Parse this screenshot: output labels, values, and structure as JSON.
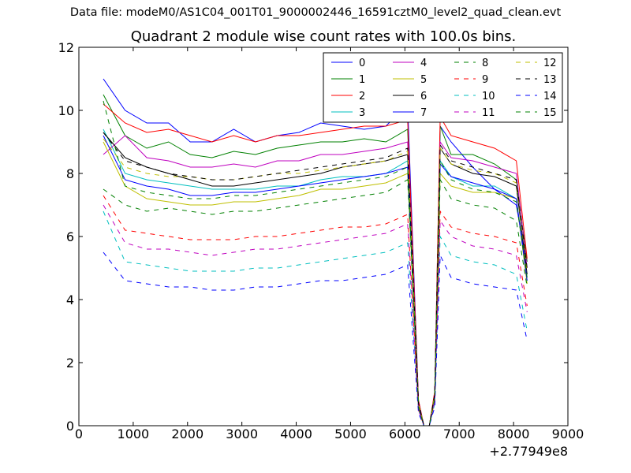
{
  "suptitle": "Data file: modeM0/AS1C04_001T01_9000002446_16591cztM0_level2_quad_clean.evt",
  "chart_data": {
    "type": "line",
    "title": "Quadrant 2 module wise count rates with 100.0s bins.",
    "xlabel": "",
    "ylabel": "",
    "x_offset_label": "+2.77949e8",
    "xlim": [
      0,
      9000
    ],
    "ylim": [
      0,
      12
    ],
    "xticks": [
      0,
      1000,
      2000,
      3000,
      4000,
      5000,
      6000,
      7000,
      8000,
      9000
    ],
    "yticks": [
      0,
      2,
      4,
      6,
      8,
      10,
      12
    ],
    "grid": false,
    "legend_position": "top-right",
    "legend_columns": 4,
    "x": [
      450,
      850,
      1250,
      1650,
      2050,
      2450,
      2850,
      3250,
      3650,
      4050,
      4450,
      4850,
      5250,
      5650,
      6050,
      6250,
      6350,
      6450,
      6550,
      6650,
      6850,
      7250,
      7650,
      8050,
      8250
    ],
    "series": [
      {
        "name": "0",
        "color": "#0000ff",
        "dash": "solid",
        "values": [
          11.0,
          10.0,
          9.6,
          9.6,
          9.0,
          9.0,
          9.4,
          9.0,
          9.2,
          9.3,
          9.6,
          9.5,
          9.4,
          9.5,
          10.2,
          0.8,
          0.0,
          0.0,
          1.0,
          9.5,
          9.0,
          8.2,
          7.5,
          7.0,
          5.0
        ]
      },
      {
        "name": "1",
        "color": "#008000",
        "dash": "solid",
        "values": [
          10.5,
          9.2,
          8.8,
          9.0,
          8.6,
          8.5,
          8.7,
          8.6,
          8.8,
          8.9,
          9.0,
          9.0,
          9.1,
          9.0,
          9.4,
          0.7,
          0.0,
          0.0,
          1.0,
          9.5,
          8.6,
          8.6,
          8.3,
          7.8,
          5.2
        ]
      },
      {
        "name": "2",
        "color": "#ff0000",
        "dash": "solid",
        "values": [
          10.2,
          9.6,
          9.3,
          9.4,
          9.2,
          9.0,
          9.2,
          9.0,
          9.2,
          9.2,
          9.3,
          9.4,
          9.5,
          9.5,
          9.7,
          0.8,
          0.0,
          0.0,
          1.1,
          9.8,
          9.2,
          9.0,
          8.8,
          8.4,
          5.3
        ]
      },
      {
        "name": "3",
        "color": "#00bfbf",
        "dash": "solid",
        "values": [
          9.4,
          8.0,
          7.8,
          7.7,
          7.6,
          7.5,
          7.5,
          7.5,
          7.6,
          7.6,
          7.8,
          7.9,
          7.9,
          8.0,
          8.4,
          0.6,
          0.0,
          0.0,
          0.9,
          8.4,
          7.9,
          7.6,
          7.6,
          7.2,
          4.6
        ]
      },
      {
        "name": "4",
        "color": "#bf00bf",
        "dash": "solid",
        "values": [
          8.6,
          9.2,
          8.5,
          8.4,
          8.2,
          8.2,
          8.3,
          8.2,
          8.4,
          8.4,
          8.6,
          8.6,
          8.7,
          8.8,
          9.0,
          0.7,
          0.0,
          0.0,
          1.0,
          9.0,
          8.5,
          8.4,
          8.2,
          8.0,
          5.0
        ]
      },
      {
        "name": "5",
        "color": "#bfbf00",
        "dash": "solid",
        "values": [
          9.0,
          7.6,
          7.2,
          7.1,
          7.0,
          7.0,
          7.1,
          7.1,
          7.2,
          7.3,
          7.5,
          7.5,
          7.6,
          7.7,
          8.0,
          0.6,
          0.0,
          0.0,
          0.9,
          8.0,
          7.6,
          7.4,
          7.4,
          7.2,
          4.5
        ]
      },
      {
        "name": "6",
        "color": "#000000",
        "dash": "solid",
        "values": [
          9.3,
          8.5,
          8.2,
          8.0,
          7.8,
          7.6,
          7.6,
          7.7,
          7.8,
          7.9,
          8.0,
          8.2,
          8.3,
          8.4,
          8.6,
          0.7,
          0.0,
          0.0,
          1.0,
          8.8,
          8.3,
          8.0,
          7.9,
          7.6,
          4.8
        ]
      },
      {
        "name": "7",
        "color": "#0000ff",
        "dash": "solid",
        "values": [
          9.2,
          7.8,
          7.6,
          7.5,
          7.3,
          7.3,
          7.4,
          7.4,
          7.5,
          7.6,
          7.7,
          7.8,
          7.9,
          8.0,
          8.2,
          0.6,
          0.0,
          0.0,
          0.9,
          8.3,
          7.9,
          7.7,
          7.5,
          7.2,
          4.6
        ]
      },
      {
        "name": "8",
        "color": "#008000",
        "dash": "dashed",
        "values": [
          7.5,
          7.0,
          6.8,
          6.9,
          6.8,
          6.7,
          6.8,
          6.8,
          6.9,
          7.0,
          7.1,
          7.2,
          7.3,
          7.4,
          7.8,
          0.6,
          0.0,
          0.0,
          0.9,
          7.8,
          7.2,
          7.0,
          6.9,
          6.5,
          4.4
        ]
      },
      {
        "name": "9",
        "color": "#ff0000",
        "dash": "dashed",
        "values": [
          7.3,
          6.2,
          6.1,
          6.0,
          5.9,
          5.9,
          5.9,
          6.0,
          6.0,
          6.1,
          6.2,
          6.3,
          6.3,
          6.4,
          6.7,
          0.5,
          0.0,
          0.0,
          0.8,
          6.8,
          6.3,
          6.1,
          6.0,
          5.8,
          3.8
        ]
      },
      {
        "name": "10",
        "color": "#00bfbf",
        "dash": "dashed",
        "values": [
          6.8,
          5.2,
          5.1,
          5.0,
          4.9,
          4.9,
          4.9,
          5.0,
          5.0,
          5.1,
          5.2,
          5.3,
          5.4,
          5.5,
          5.8,
          0.5,
          0.0,
          0.0,
          0.7,
          6.0,
          5.4,
          5.2,
          5.1,
          4.8,
          3.0
        ]
      },
      {
        "name": "11",
        "color": "#bf00bf",
        "dash": "dashed",
        "values": [
          7.0,
          5.8,
          5.6,
          5.6,
          5.5,
          5.4,
          5.5,
          5.6,
          5.6,
          5.7,
          5.8,
          5.9,
          6.0,
          6.1,
          6.4,
          0.5,
          0.0,
          0.0,
          0.8,
          6.5,
          6.0,
          5.7,
          5.6,
          5.4,
          3.6
        ]
      },
      {
        "name": "12",
        "color": "#bfbf00",
        "dash": "dashed",
        "values": [
          9.1,
          8.2,
          8.0,
          7.9,
          7.9,
          7.8,
          7.8,
          7.9,
          8.0,
          8.0,
          8.1,
          8.2,
          8.3,
          8.4,
          8.7,
          0.7,
          0.0,
          0.0,
          1.0,
          8.8,
          8.3,
          8.1,
          8.0,
          7.7,
          4.9
        ]
      },
      {
        "name": "13",
        "color": "#000000",
        "dash": "dashed",
        "values": [
          9.3,
          8.4,
          8.2,
          8.0,
          7.9,
          7.8,
          7.8,
          7.9,
          8.0,
          8.1,
          8.2,
          8.3,
          8.4,
          8.5,
          8.8,
          0.7,
          0.0,
          0.0,
          1.0,
          8.9,
          8.4,
          8.2,
          8.0,
          7.8,
          5.0
        ]
      },
      {
        "name": "14",
        "color": "#0000ff",
        "dash": "dashed",
        "values": [
          5.5,
          4.6,
          4.5,
          4.4,
          4.4,
          4.3,
          4.3,
          4.4,
          4.4,
          4.5,
          4.6,
          4.6,
          4.7,
          4.8,
          5.1,
          0.4,
          0.0,
          0.0,
          0.6,
          5.4,
          4.7,
          4.5,
          4.4,
          4.3,
          2.7
        ]
      },
      {
        "name": "15",
        "color": "#008000",
        "dash": "dashed",
        "values": [
          10.3,
          7.6,
          7.4,
          7.3,
          7.2,
          7.2,
          7.3,
          7.3,
          7.4,
          7.5,
          7.6,
          7.7,
          7.8,
          7.9,
          8.2,
          0.6,
          0.0,
          0.0,
          0.9,
          8.4,
          7.8,
          7.5,
          7.4,
          7.1,
          4.7
        ]
      }
    ]
  }
}
